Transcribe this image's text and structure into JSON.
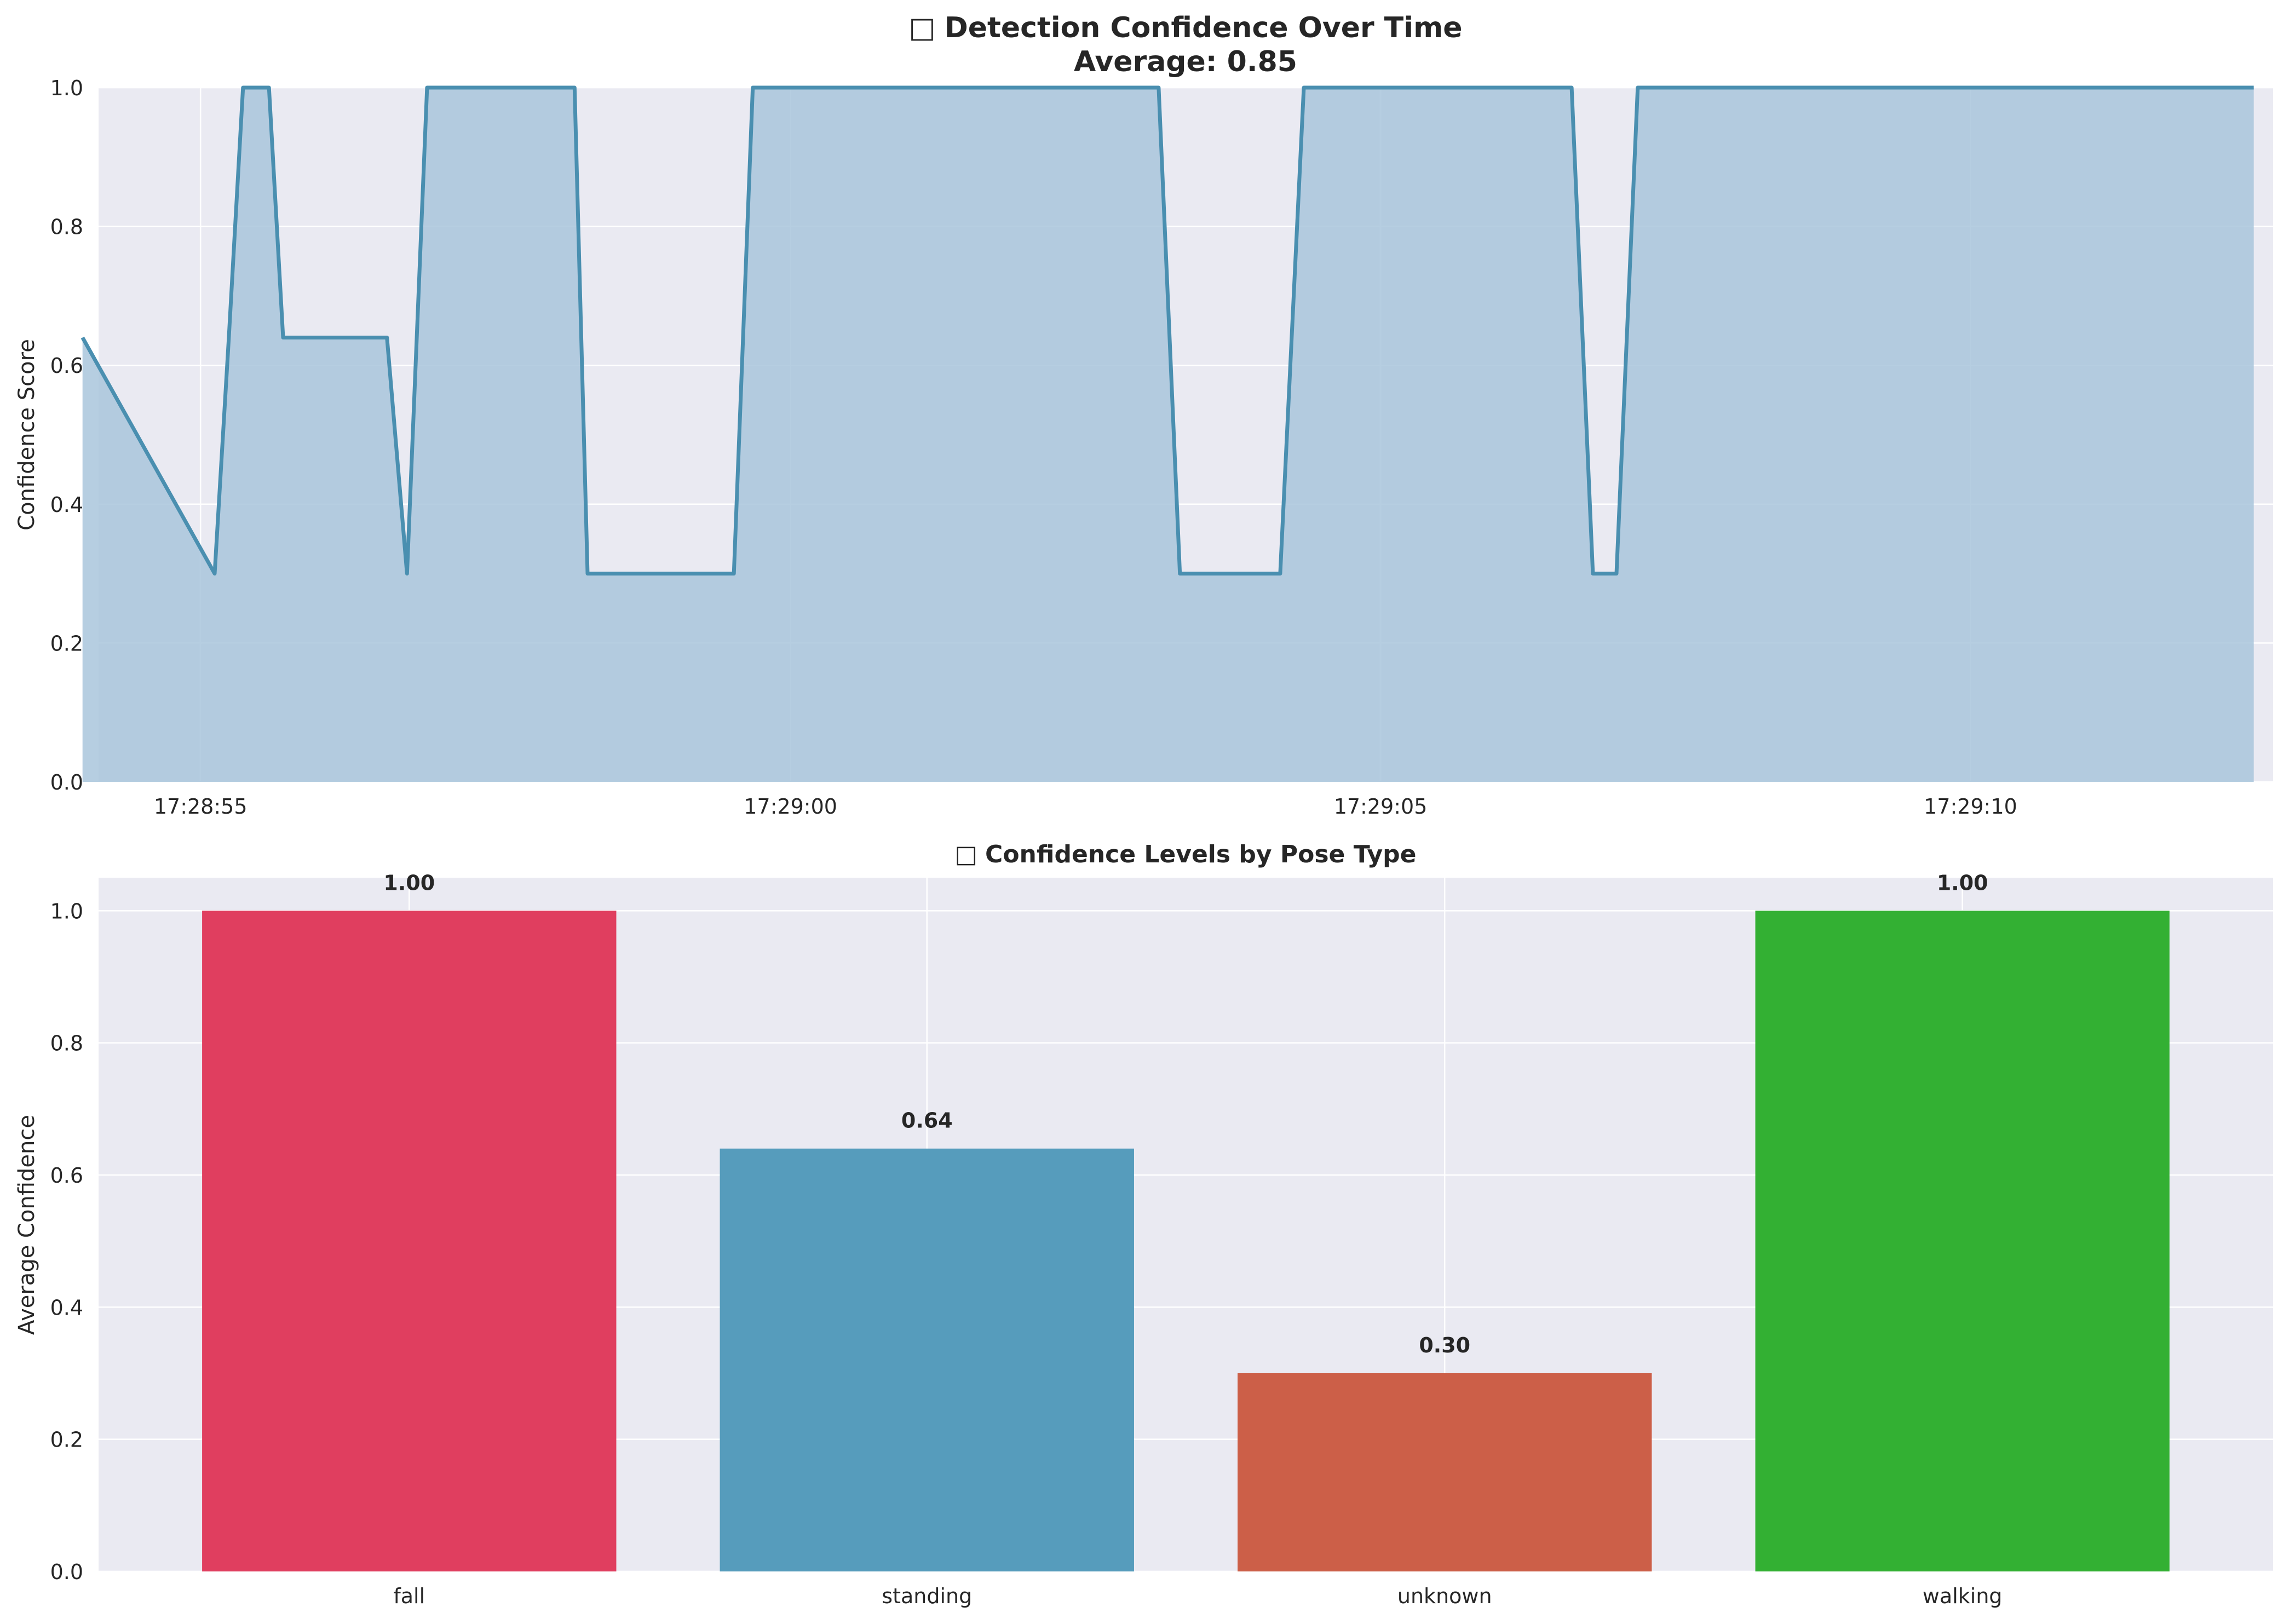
{
  "chart_data": [
    {
      "type": "area",
      "title_icon": "□",
      "title": "Detection Confidence Over Time",
      "subtitle": "Average: 0.85",
      "xlabel": "",
      "ylabel": "Confidence Score",
      "ylim": [
        0,
        1
      ],
      "yticks": [
        "0.0",
        "0.2",
        "0.4",
        "0.6",
        "0.8",
        "1.0"
      ],
      "xticks": [
        "17:28:55",
        "17:29:00",
        "17:29:05",
        "17:29:10"
      ],
      "xlim": [
        "17:28:54.136",
        "17:29:12.564"
      ],
      "grid": true,
      "color": "#4a8fb0",
      "fill_color": "#a9c6dc",
      "series": [
        {
          "x": [
            "17:28:54.000",
            "17:28:55.120",
            "17:28:55.240",
            "17:28:55.360",
            "17:28:55.580",
            "17:28:55.700",
            "17:28:55.820",
            "17:28:56.400",
            "17:28:56.580",
            "17:28:56.750",
            "17:28:56.920",
            "17:28:57.800",
            "17:28:58.000",
            "17:28:58.170",
            "17:28:58.280",
            "17:28:59.520",
            "17:28:59.680",
            "17:29:03.120",
            "17:29:03.300",
            "17:29:04.150",
            "17:29:04.350",
            "17:29:06.620",
            "17:29:06.800",
            "17:29:07.000",
            "17:29:07.180",
            "17:29:12.400"
          ],
          "y": [
            0.64,
            0.3,
            0.64,
            1.0,
            1.0,
            0.64,
            0.64,
            0.64,
            0.64,
            0.3,
            1.0,
            1.0,
            1.0,
            1.0,
            0.3,
            0.3,
            1.0,
            1.0,
            0.3,
            0.3,
            1.0,
            1.0,
            0.3,
            0.3,
            1.0,
            1.0
          ]
        }
      ]
    },
    {
      "type": "bar",
      "title_icon": "□",
      "title": "Confidence Levels by Pose Type",
      "xlabel": "",
      "ylabel": "Average Confidence",
      "ylim": [
        0,
        1.05
      ],
      "yticks": [
        "0.0",
        "0.2",
        "0.4",
        "0.6",
        "0.8",
        "1.0"
      ],
      "grid": true,
      "categories": [
        "fall",
        "standing",
        "unknown",
        "walking"
      ],
      "values": [
        1.0,
        0.64,
        0.3,
        1.0
      ],
      "value_labels": [
        "1.00",
        "0.64",
        "0.30",
        "1.00"
      ],
      "colors": [
        "#e03e5f",
        "#569cbc",
        "#cc5f48",
        "#33b033"
      ]
    }
  ]
}
